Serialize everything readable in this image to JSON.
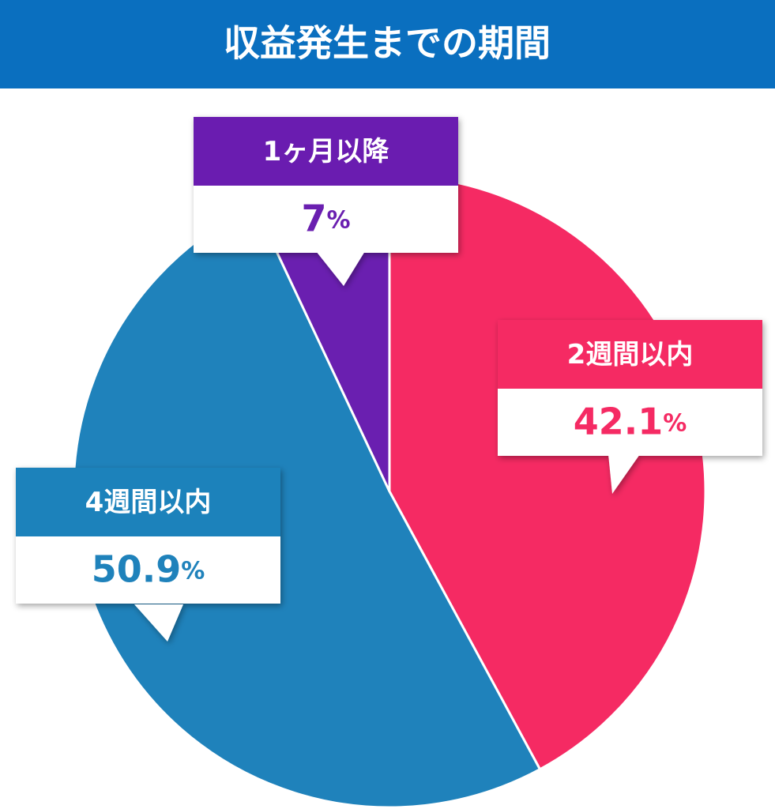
{
  "chart_data": {
    "type": "pie",
    "title": "収益発生までの期間",
    "categories": [
      "2週間以内",
      "4週間以内",
      "1ヶ月以降"
    ],
    "values": [
      42.1,
      50.9,
      7
    ],
    "value_labels": [
      "42.1%",
      "50.9%",
      "7%"
    ],
    "colors": [
      "#f52a63",
      "#1f82bb",
      "#6a1fb0"
    ]
  }
}
